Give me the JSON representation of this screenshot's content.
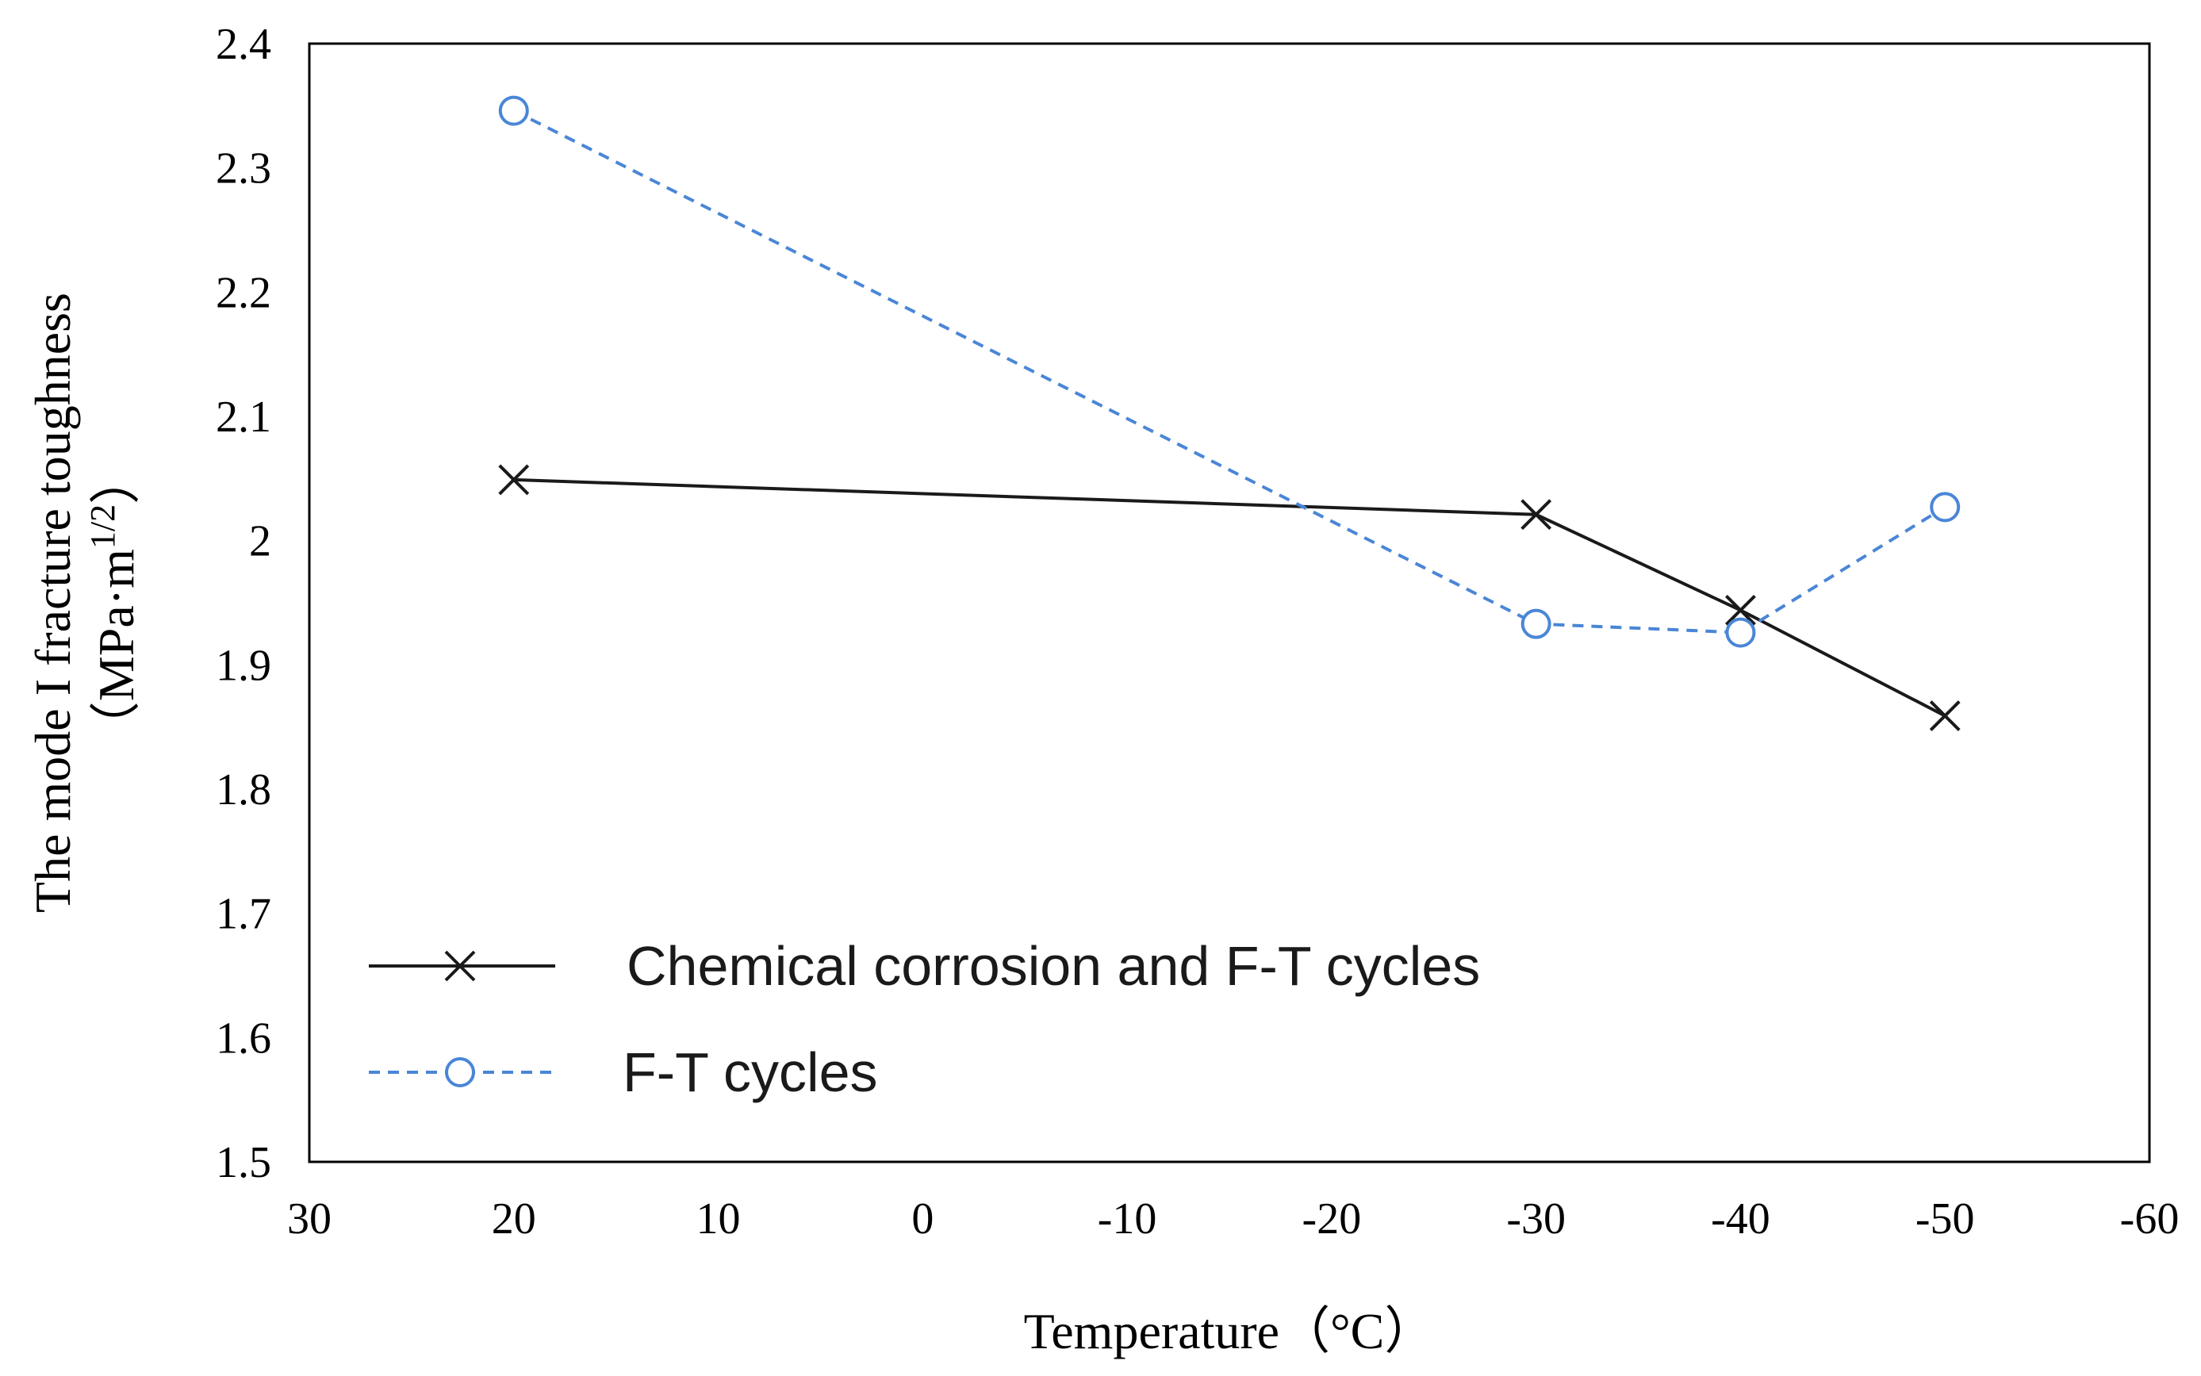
{
  "chart_data": {
    "type": "line",
    "title": "",
    "xlabel": "Temperature（°C）",
    "ylabel": {
      "line1": "The mode I fracture toughness",
      "line2_prefix": "（MPa·m",
      "line2_sup": "1/2",
      "line2_suffix": "）"
    },
    "xlim": [
      30,
      -60
    ],
    "ylim": [
      1.5,
      2.4
    ],
    "x_ticks": [
      30,
      20,
      10,
      0,
      -10,
      -20,
      -30,
      -40,
      -50,
      -60
    ],
    "x_tick_labels": [
      "30",
      "20",
      "10",
      "0",
      "-10",
      "-20",
      "-30",
      "-40",
      "-50",
      "-60"
    ],
    "y_ticks": [
      1.5,
      1.6,
      1.7,
      1.8,
      1.9,
      2.0,
      2.1,
      2.2,
      2.3,
      2.4
    ],
    "y_tick_labels": [
      "1.5",
      "1.6",
      "1.7",
      "1.8",
      "1.9",
      "2",
      "2.1",
      "2.2",
      "2.3",
      "2.4"
    ],
    "grid": false,
    "legend_position": "bottom-left",
    "series": [
      {
        "name": "Chemical corrosion and F-T cycles",
        "x": [
          20,
          -30,
          -40,
          -50
        ],
        "values": [
          2.049,
          2.021,
          1.944,
          1.859
        ],
        "color": "#1a1a1a",
        "marker": "x",
        "line_style": "solid"
      },
      {
        "name": "F-T cycles",
        "x": [
          20,
          -30,
          -40,
          -50
        ],
        "values": [
          2.346,
          1.933,
          1.926,
          2.027
        ],
        "color": "#4a86d6",
        "marker": "circle",
        "line_style": "dashed"
      }
    ]
  }
}
